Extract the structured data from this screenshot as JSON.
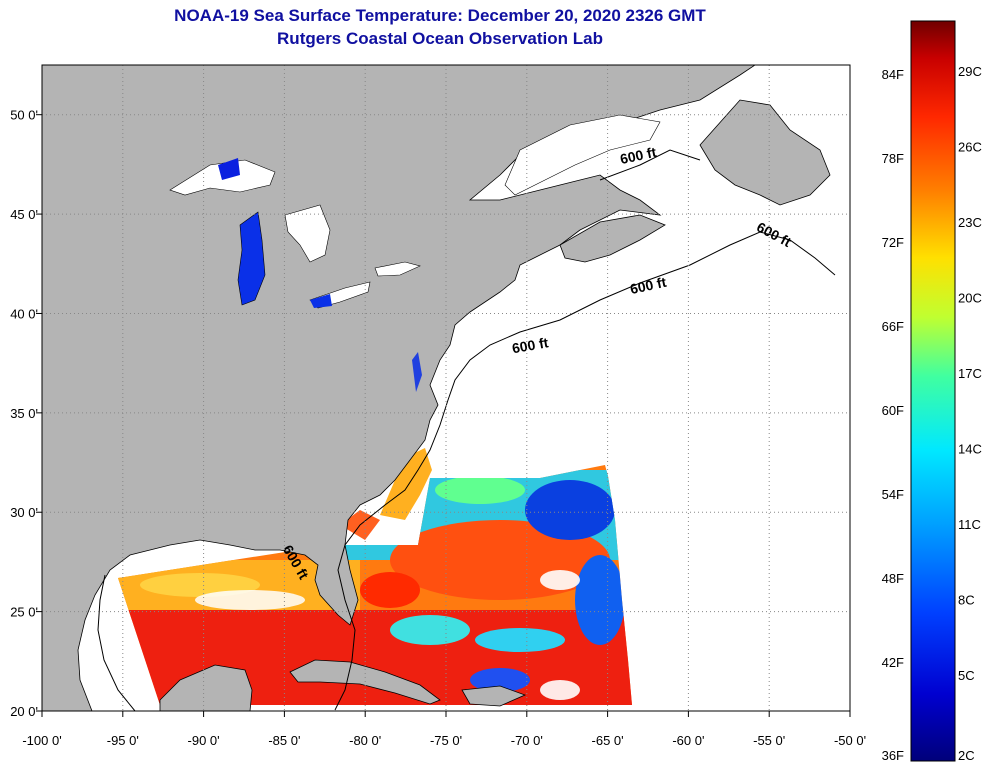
{
  "title": {
    "line1": "NOAA-19 Sea Surface Temperature:  December 20, 2020 2326 GMT",
    "line2": "Rutgers Coastal Ocean Observation Lab"
  },
  "map": {
    "lon_range": [
      -100,
      -50
    ],
    "lat_range": [
      20,
      52.5
    ],
    "lon_ticks": [
      "-100 0'",
      "-95 0'",
      "-90 0'",
      "-85 0'",
      "-80 0'",
      "-75 0'",
      "-70 0'",
      "-65 0'",
      "-60 0'",
      "-55 0'",
      "-50 0'"
    ],
    "lat_ticks": [
      "20 0'",
      "25 0'",
      "30 0'",
      "35 0'",
      "40 0'",
      "45 0'",
      "50 0'"
    ],
    "grid": "dotted",
    "land_color": "#b4b4b4",
    "nodata_color": "#ffffff"
  },
  "contours": {
    "label": "600 ft",
    "labels": [
      "600 ft",
      "600 ft",
      "600 ft",
      "600 ft",
      "600 ft"
    ]
  },
  "colorbar": {
    "fahrenheit": [
      "84F",
      "78F",
      "72F",
      "66F",
      "60F",
      "54F",
      "48F",
      "42F",
      "36F"
    ],
    "celsius": [
      "29C",
      "26C",
      "23C",
      "20C",
      "17C",
      "14C",
      "11C",
      "8C",
      "5C",
      "2C"
    ],
    "colors": [
      "#7a0000",
      "#c00000",
      "#ff2000",
      "#ff7a00",
      "#ffd000",
      "#d8ff20",
      "#60ff90",
      "#00e0ff",
      "#0090ff",
      "#0030ff",
      "#0000b0",
      "#00007a"
    ]
  }
}
